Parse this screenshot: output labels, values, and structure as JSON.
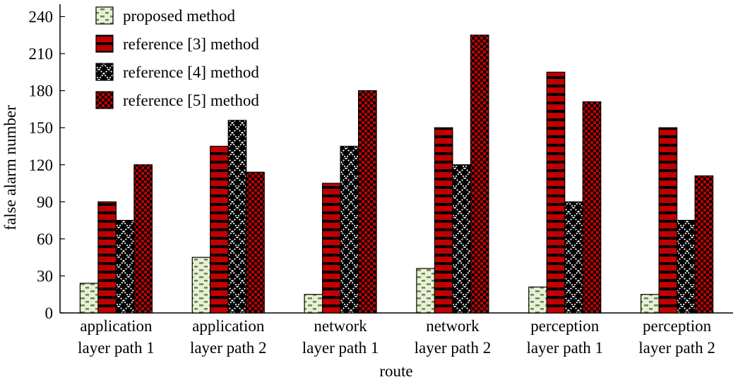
{
  "chart_data": {
    "type": "bar",
    "xlabel": "route",
    "ylabel": "false alarm number",
    "ylim": [
      0,
      250
    ],
    "yticks": [
      0,
      30,
      60,
      90,
      120,
      150,
      180,
      210,
      240
    ],
    "categories": [
      [
        "application",
        "layer path 1"
      ],
      [
        "application",
        "layer path 2"
      ],
      [
        "network",
        "layer path 1"
      ],
      [
        "network",
        "layer path 2"
      ],
      [
        "perception",
        "layer path 1"
      ],
      [
        "perception",
        "layer path 2"
      ]
    ],
    "series": [
      {
        "name": "proposed method",
        "values": [
          24,
          45,
          15,
          36,
          21,
          15
        ],
        "pattern": "dash",
        "color": "#e8eedc",
        "accent": "#6b8a3a"
      },
      {
        "name": "reference [3] method",
        "values": [
          90,
          135,
          105,
          150,
          195,
          150
        ],
        "pattern": "stripe",
        "color": "#c00000",
        "accent": "#000000"
      },
      {
        "name": "reference [4] method",
        "values": [
          75,
          156,
          135,
          120,
          90,
          75
        ],
        "pattern": "lattice",
        "color": "#000000",
        "accent": "#ffffff"
      },
      {
        "name": "reference [5] method",
        "values": [
          120,
          114,
          180,
          225,
          171,
          111
        ],
        "pattern": "checker",
        "color": "#c00000",
        "accent": "#000000"
      }
    ],
    "legend": "top-left",
    "grid": false
  }
}
